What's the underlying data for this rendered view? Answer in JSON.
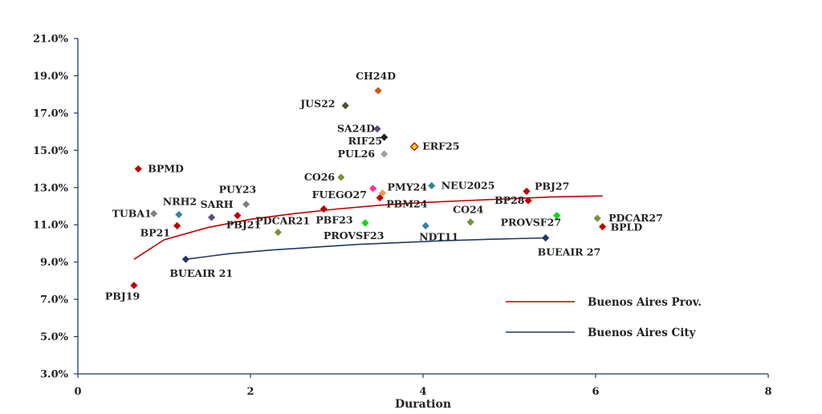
{
  "chart_data": {
    "type": "scatter",
    "xlabel": "Duration",
    "ylabel": "",
    "xlim": [
      0,
      8
    ],
    "ylim": [
      3.0,
      21.0
    ],
    "x_ticks": [
      0,
      2,
      4,
      6,
      8
    ],
    "y_ticks": [
      "3.0%",
      "5.0%",
      "7.0%",
      "9.0%",
      "11.0%",
      "13.0%",
      "15.0%",
      "17.0%",
      "19.0%",
      "21.0%"
    ],
    "grid": false,
    "legend_position": "bottom-right",
    "points": [
      {
        "label": "PBJ19",
        "x": 0.65,
        "y": 7.75,
        "color": "#c00000"
      },
      {
        "label": "BPMD",
        "x": 0.7,
        "y": 14.0,
        "color": "#c00000"
      },
      {
        "label": "TUBA1",
        "x": 0.88,
        "y": 11.6,
        "color": "#808080"
      },
      {
        "label": "BP21",
        "x": 1.15,
        "y": 10.95,
        "color": "#c00000"
      },
      {
        "label": "NRH2",
        "x": 1.17,
        "y": 11.55,
        "color": "#31859c"
      },
      {
        "label": "BUEAIR 21",
        "x": 1.25,
        "y": 9.15,
        "color": "#1f3864"
      },
      {
        "label": "SARH",
        "x": 1.55,
        "y": 11.4,
        "color": "#604a7b"
      },
      {
        "label": "PBJ21",
        "x": 1.85,
        "y": 11.5,
        "color": "#c00000"
      },
      {
        "label": "PUY23",
        "x": 1.95,
        "y": 12.1,
        "color": "#808080"
      },
      {
        "label": "PDCAR21",
        "x": 2.32,
        "y": 10.6,
        "color": "#77933c"
      },
      {
        "label": "PBF23",
        "x": 2.85,
        "y": 11.85,
        "color": "#c00000"
      },
      {
        "label": "CO26",
        "x": 3.05,
        "y": 13.55,
        "color": "#77933c"
      },
      {
        "label": "JUS22",
        "x": 3.1,
        "y": 17.4,
        "color": "#4f4f2f"
      },
      {
        "label": "PROVSF23",
        "x": 3.33,
        "y": 11.1,
        "color": "#00e000"
      },
      {
        "label": "FUEGO27",
        "x": 3.42,
        "y": 12.95,
        "color": "#ff3399"
      },
      {
        "label": "SA24D",
        "x": 3.47,
        "y": 16.15,
        "color": "#604a7b"
      },
      {
        "label": "CH24D",
        "x": 3.48,
        "y": 18.2,
        "color": "#c55a11"
      },
      {
        "label": "PBM24",
        "x": 3.5,
        "y": 12.45,
        "color": "#c00000"
      },
      {
        "label": "PMY24",
        "x": 3.53,
        "y": 12.7,
        "color": "#f79646"
      },
      {
        "label": "RIF25",
        "x": 3.55,
        "y": 15.7,
        "color": "#1a1a1a"
      },
      {
        "label": "PUL26",
        "x": 3.55,
        "y": 14.8,
        "color": "#a0a0a0"
      },
      {
        "label": "ERF25",
        "x": 3.9,
        "y": 15.2,
        "color": "#ffd700"
      },
      {
        "label": "NDT11",
        "x": 4.03,
        "y": 10.95,
        "color": "#31859c"
      },
      {
        "label": "NEU2025",
        "x": 4.1,
        "y": 13.1,
        "color": "#31859c"
      },
      {
        "label": "CO24",
        "x": 4.55,
        "y": 11.15,
        "color": "#77933c"
      },
      {
        "label": "PBJ27",
        "x": 5.2,
        "y": 12.8,
        "color": "#c00000"
      },
      {
        "label": "BP28",
        "x": 5.22,
        "y": 12.3,
        "color": "#c00000"
      },
      {
        "label": "BUEAIR 27",
        "x": 5.42,
        "y": 10.3,
        "color": "#1f3864"
      },
      {
        "label": "PROVSF27",
        "x": 5.55,
        "y": 11.5,
        "color": "#00e000"
      },
      {
        "label": "PDCAR27",
        "x": 6.02,
        "y": 11.35,
        "color": "#77933c"
      },
      {
        "label": "BPLD",
        "x": 6.08,
        "y": 10.9,
        "color": "#c00000"
      }
    ],
    "series": [
      {
        "name": "Buenos Aires Prov.",
        "type": "line",
        "color": "#c00000",
        "x": [
          0.65,
          1.0,
          1.5,
          2.0,
          2.5,
          3.0,
          3.5,
          4.0,
          4.5,
          5.0,
          5.5,
          6.08
        ],
        "y": [
          9.15,
          10.2,
          10.85,
          11.3,
          11.6,
          11.85,
          12.05,
          12.2,
          12.3,
          12.4,
          12.5,
          12.55
        ]
      },
      {
        "name": "Buenos Aires City",
        "type": "line",
        "color": "#1f3864",
        "x": [
          1.25,
          1.75,
          2.25,
          2.75,
          3.25,
          3.75,
          4.25,
          4.75,
          5.42
        ],
        "y": [
          9.15,
          9.45,
          9.65,
          9.8,
          9.95,
          10.05,
          10.15,
          10.22,
          10.3
        ]
      }
    ]
  }
}
